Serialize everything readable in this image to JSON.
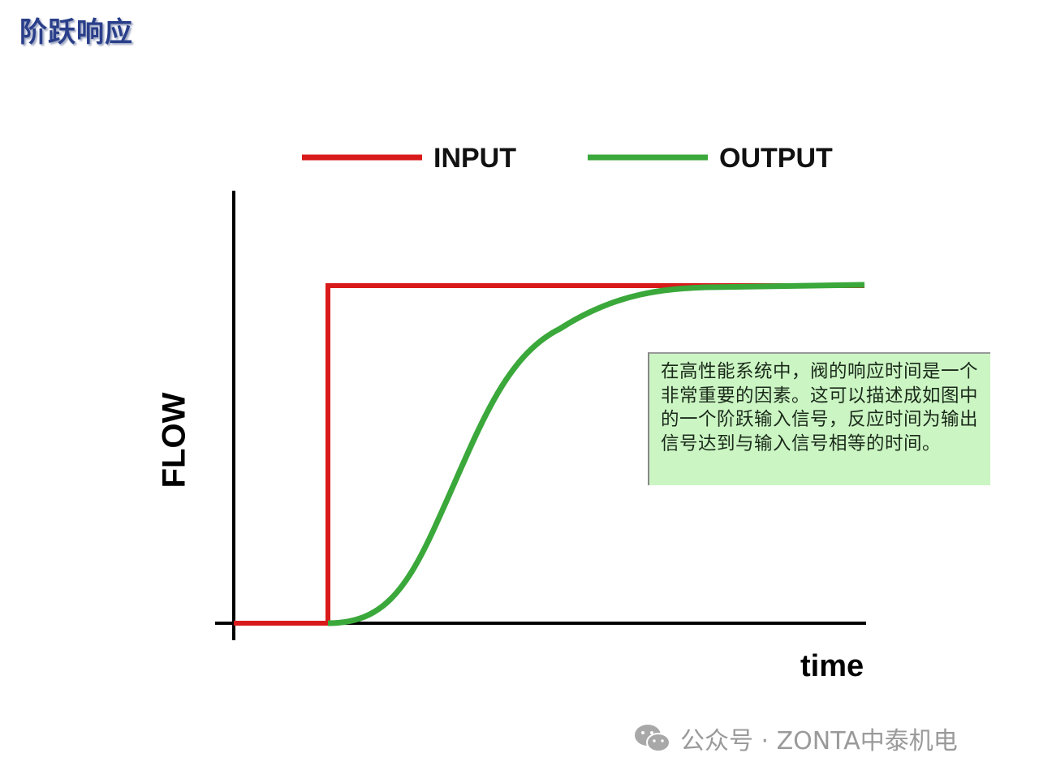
{
  "title": "阶跃响应",
  "legend": [
    {
      "label": "INPUT",
      "color": "#d91a1a"
    },
    {
      "label": "OUTPUT",
      "color": "#3aa83a"
    }
  ],
  "axes": {
    "y_label": "FLOW",
    "x_label": "time"
  },
  "note": "在高性能系统中，阀的响应时间是一个非常重要的因素。这可以描述成如图中的一个阶跃输入信号，反应时间为输出信号达到与输入信号相等的时间。",
  "note_bg": "#ccf5c4",
  "watermark": {
    "icon": "wechat-icon",
    "text": "公众号 · ZONTA中泰机电"
  }
}
